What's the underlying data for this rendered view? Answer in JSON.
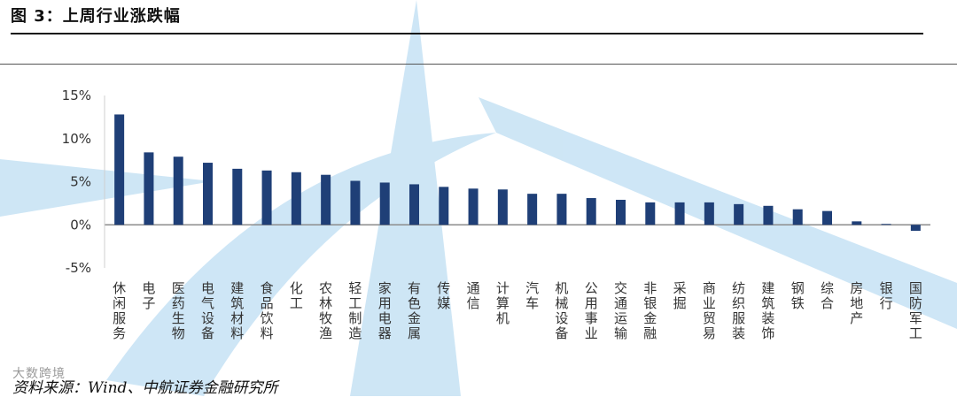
{
  "header": {
    "title": "图 3：上周行业涨跌幅"
  },
  "footer": {
    "source": "资料来源：Wind、中航证券金融研究所",
    "watermark": "大数跨境"
  },
  "colors": {
    "bar": "#1f3f77",
    "axis": "#8c8c8c",
    "decor": "#c6e2f4"
  },
  "chart_data": {
    "type": "bar",
    "title": "",
    "xlabel": "",
    "ylabel": "",
    "ylim": [
      -5,
      15
    ],
    "yticks": [
      15,
      10,
      5,
      0,
      -5
    ],
    "ytick_labels": [
      "15%",
      "10%",
      "5%",
      "0%",
      "-5%"
    ],
    "grid": false,
    "categories": [
      "休闲服务",
      "电子",
      "医药生物",
      "电气设备",
      "建筑材料",
      "食品饮料",
      "化工",
      "农林牧渔",
      "轻工制造",
      "家用电器",
      "有色金属",
      "传媒",
      "通信",
      "计算机",
      "汽车",
      "机械设备",
      "公用事业",
      "交通运输",
      "非银金融",
      "采掘",
      "商业贸易",
      "纺织服装",
      "建筑装饰",
      "钢铁",
      "综合",
      "房地产",
      "银行",
      "国防军工"
    ],
    "values": [
      12.8,
      8.4,
      7.9,
      7.2,
      6.5,
      6.3,
      6.1,
      5.8,
      5.1,
      4.9,
      4.7,
      4.4,
      4.2,
      4.1,
      3.6,
      3.6,
      3.1,
      2.9,
      2.6,
      2.6,
      2.6,
      2.4,
      2.2,
      1.8,
      1.6,
      0.4,
      0.1,
      -0.7
    ],
    "unit": "%"
  }
}
